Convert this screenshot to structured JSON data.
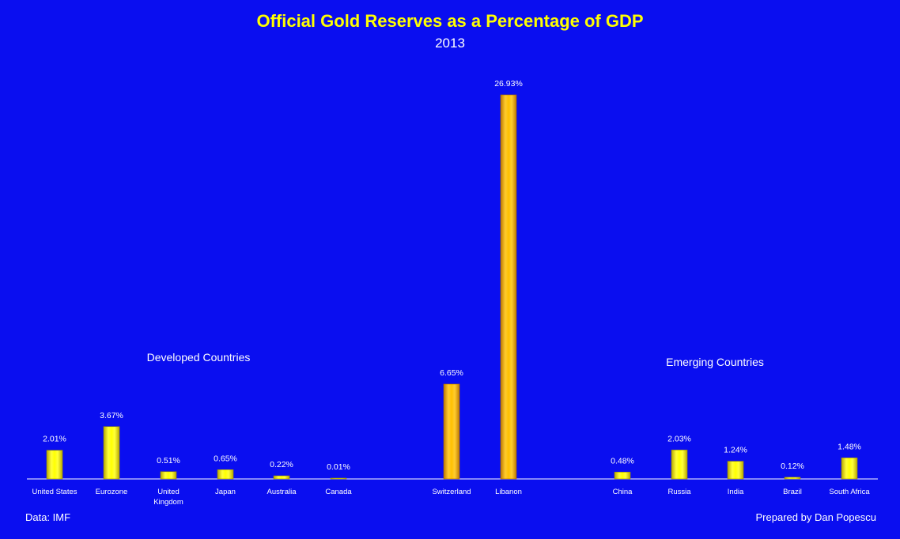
{
  "chart_data": {
    "type": "bar",
    "title": "Official Gold Reserves as a Percentage of GDP",
    "subtitle": "2013",
    "categories": [
      [
        "United States"
      ],
      [
        "Eurozone"
      ],
      [
        "United",
        "Kingdom"
      ],
      [
        "Japan"
      ],
      [
        "Australia"
      ],
      [
        "Canada"
      ],
      [
        "Switzerland"
      ],
      [
        "Libanon"
      ],
      [
        "China"
      ],
      [
        "Russia"
      ],
      [
        "India"
      ],
      [
        "Brazil"
      ],
      [
        "South Africa"
      ]
    ],
    "values": [
      2.01,
      3.67,
      0.51,
      0.65,
      0.22,
      0.01,
      6.65,
      26.93,
      0.48,
      2.03,
      1.24,
      0.12,
      1.48
    ],
    "value_labels": [
      "2.01%",
      "3.67%",
      "0.51%",
      "0.65%",
      "0.22%",
      "0.01%",
      "6.65%",
      "26.93%",
      "0.48%",
      "2.03%",
      "1.24%",
      "0.12%",
      "1.48%"
    ],
    "bar_colors": [
      "#ffff00",
      "#ffff00",
      "#ffff00",
      "#ffff00",
      "#ffff00",
      "#ffff00",
      "#ffc000",
      "#ffc000",
      "#ffff00",
      "#ffff00",
      "#ffff00",
      "#ffff00",
      "#ffff00"
    ],
    "group_labels": [
      "Developed Countries",
      "Emerging Countries"
    ],
    "ylim": [
      0,
      28
    ],
    "grid": false,
    "xlabel": "",
    "ylabel": ""
  },
  "footer": {
    "source": "Data: IMF",
    "credit": "Prepared by Dan Popescu"
  },
  "colors": {
    "background": "#0a0ef0",
    "title": "#ffff00",
    "bar_primary": "#ffff00",
    "bar_highlight": "#ffc000"
  }
}
